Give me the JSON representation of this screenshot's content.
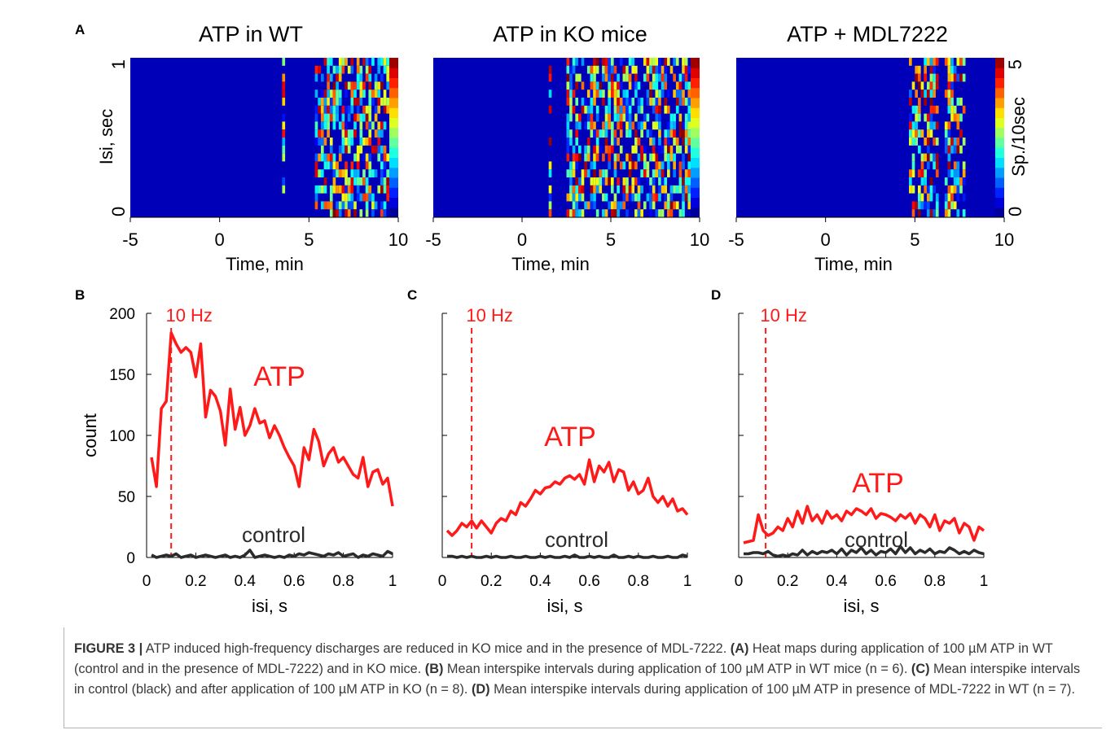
{
  "figure": {
    "panel_labels": [
      "A",
      "B",
      "C",
      "D"
    ],
    "heatmaps": [
      {
        "title": "ATP in WT",
        "xlabel": "Time, min",
        "ylabel": "Isi, sec",
        "xticks": [
          "-5",
          "0",
          "5",
          "10"
        ],
        "yticks": [
          "0",
          "1"
        ]
      },
      {
        "title": "ATP in KO mice",
        "xlabel": "Time, min",
        "xticks": [
          "-5",
          "0",
          "5",
          "10"
        ]
      },
      {
        "title": "ATP + MDL7222",
        "xlabel": "Time, min",
        "xticks": [
          "-5",
          "0",
          "5",
          "10"
        ]
      }
    ],
    "colorbar": {
      "label": "Sp./10sec",
      "ticks": [
        "0",
        "5"
      ]
    },
    "hz_label": "10 Hz",
    "atp_label": "ATP",
    "control_label": "control",
    "line_xlabel": "isi, s",
    "line_ylabel": "count",
    "line_xticks": [
      "0",
      "0.2",
      "0.4",
      "0.6",
      "0.8",
      "1"
    ],
    "line_yticks": [
      "0",
      "50",
      "100",
      "150",
      "200"
    ],
    "colors": {
      "atp": "#ff1a1a",
      "control": "#2b2b2b",
      "heat_background": "#0000b8"
    }
  },
  "chart_data": [
    {
      "type": "heatmap",
      "title": "ATP in WT",
      "xlabel": "Time, min",
      "ylabel": "Isi, sec",
      "xlim": [
        -5,
        10
      ],
      "ylim": [
        0,
        1
      ],
      "zlim": [
        0,
        5
      ],
      "colormap": "jet",
      "active_windows_min": [
        [
          3.5,
          3.7
        ],
        [
          5.3,
          10
        ]
      ]
    },
    {
      "type": "heatmap",
      "title": "ATP in KO mice",
      "xlabel": "Time, min",
      "xlim": [
        -5,
        10
      ],
      "ylim": [
        0,
        1
      ],
      "zlim": [
        0,
        5
      ],
      "colormap": "jet",
      "active_windows_min": [
        [
          1.5,
          1.7
        ],
        [
          2.5,
          9.5
        ]
      ]
    },
    {
      "type": "heatmap",
      "title": "ATP + MDL7222",
      "xlabel": "Time, min",
      "xlim": [
        -5,
        10
      ],
      "ylim": [
        0,
        1
      ],
      "zlim": [
        0,
        5
      ],
      "colormap": "jet",
      "active_windows_min": [
        [
          4.6,
          6.3
        ],
        [
          6.6,
          7.8
        ]
      ]
    },
    {
      "type": "line",
      "panel": "B",
      "xlabel": "isi, s",
      "ylabel": "count",
      "xlim": [
        0,
        1
      ],
      "ylim": [
        0,
        200
      ],
      "vline_x": 0.1,
      "vline_label": "10 Hz",
      "x": [
        0.02,
        0.04,
        0.06,
        0.08,
        0.1,
        0.12,
        0.14,
        0.16,
        0.18,
        0.2,
        0.22,
        0.24,
        0.26,
        0.28,
        0.3,
        0.32,
        0.34,
        0.36,
        0.38,
        0.4,
        0.42,
        0.44,
        0.46,
        0.48,
        0.5,
        0.52,
        0.54,
        0.56,
        0.58,
        0.6,
        0.62,
        0.64,
        0.66,
        0.68,
        0.7,
        0.72,
        0.74,
        0.76,
        0.78,
        0.8,
        0.82,
        0.84,
        0.86,
        0.88,
        0.9,
        0.92,
        0.94,
        0.96,
        0.98,
        1.0
      ],
      "series": [
        {
          "name": "ATP",
          "values": [
            82,
            58,
            122,
            128,
            184,
            175,
            168,
            172,
            168,
            148,
            175,
            115,
            137,
            132,
            120,
            92,
            138,
            105,
            123,
            100,
            108,
            122,
            110,
            112,
            98,
            108,
            100,
            90,
            82,
            75,
            58,
            90,
            80,
            105,
            95,
            75,
            85,
            90,
            78,
            82,
            75,
            68,
            65,
            82,
            58,
            70,
            72,
            60,
            65,
            42
          ]
        },
        {
          "name": "control",
          "values": [
            2,
            0,
            1,
            2,
            1,
            3,
            0,
            1,
            2,
            0,
            1,
            2,
            1,
            0,
            1,
            2,
            0,
            1,
            0,
            2,
            6,
            0,
            1,
            2,
            1,
            0,
            1,
            0,
            2,
            1,
            3,
            2,
            4,
            3,
            2,
            1,
            3,
            2,
            4,
            1,
            2,
            3,
            0,
            2,
            1,
            3,
            2,
            1,
            5,
            3
          ]
        }
      ]
    },
    {
      "type": "line",
      "panel": "C",
      "xlabel": "isi, s",
      "xlim": [
        0,
        1
      ],
      "ylim": [
        0,
        200
      ],
      "vline_x": 0.12,
      "vline_label": "10 Hz",
      "x": [
        0.02,
        0.04,
        0.06,
        0.08,
        0.1,
        0.12,
        0.14,
        0.16,
        0.18,
        0.2,
        0.22,
        0.24,
        0.26,
        0.28,
        0.3,
        0.32,
        0.34,
        0.36,
        0.38,
        0.4,
        0.42,
        0.44,
        0.46,
        0.48,
        0.5,
        0.52,
        0.54,
        0.56,
        0.58,
        0.6,
        0.62,
        0.64,
        0.66,
        0.68,
        0.7,
        0.72,
        0.74,
        0.76,
        0.78,
        0.8,
        0.82,
        0.84,
        0.86,
        0.88,
        0.9,
        0.92,
        0.94,
        0.96,
        0.98,
        1.0
      ],
      "series": [
        {
          "name": "ATP",
          "values": [
            22,
            18,
            22,
            28,
            25,
            30,
            24,
            30,
            25,
            20,
            28,
            32,
            30,
            38,
            35,
            45,
            42,
            48,
            55,
            52,
            57,
            58,
            62,
            60,
            65,
            67,
            64,
            68,
            60,
            80,
            62,
            75,
            70,
            78,
            62,
            72,
            70,
            55,
            62,
            52,
            55,
            65,
            50,
            45,
            50,
            42,
            48,
            38,
            40,
            35
          ]
        },
        {
          "name": "control",
          "values": [
            1,
            1,
            0,
            1,
            0,
            1,
            0,
            0,
            1,
            0,
            1,
            0,
            0,
            1,
            0,
            0,
            1,
            0,
            0,
            1,
            0,
            1,
            0,
            0,
            1,
            0,
            2,
            0,
            0,
            1,
            0,
            1,
            0,
            0,
            2,
            0,
            0,
            1,
            0,
            1,
            0,
            0,
            1,
            0,
            0,
            1,
            0,
            0,
            2,
            1
          ]
        }
      ]
    },
    {
      "type": "line",
      "panel": "D",
      "xlabel": "isi, s",
      "xlim": [
        0,
        1
      ],
      "ylim": [
        0,
        200
      ],
      "vline_x": 0.11,
      "vline_label": "10 Hz",
      "x": [
        0.02,
        0.04,
        0.06,
        0.08,
        0.1,
        0.12,
        0.14,
        0.16,
        0.18,
        0.2,
        0.22,
        0.24,
        0.26,
        0.28,
        0.3,
        0.32,
        0.34,
        0.36,
        0.38,
        0.4,
        0.42,
        0.44,
        0.46,
        0.48,
        0.5,
        0.52,
        0.54,
        0.56,
        0.58,
        0.6,
        0.62,
        0.64,
        0.66,
        0.68,
        0.7,
        0.72,
        0.74,
        0.76,
        0.78,
        0.8,
        0.82,
        0.84,
        0.86,
        0.88,
        0.9,
        0.92,
        0.94,
        0.96,
        0.98,
        1.0
      ],
      "series": [
        {
          "name": "ATP",
          "values": [
            12,
            13,
            14,
            35,
            22,
            18,
            20,
            25,
            22,
            32,
            25,
            38,
            28,
            42,
            30,
            35,
            28,
            38,
            32,
            35,
            30,
            38,
            35,
            40,
            38,
            35,
            40,
            32,
            36,
            35,
            33,
            30,
            35,
            32,
            36,
            28,
            35,
            32,
            25,
            35,
            22,
            30,
            28,
            32,
            20,
            28,
            25,
            14,
            25,
            22
          ]
        },
        {
          "name": "control",
          "values": [
            3,
            3,
            4,
            4,
            3,
            5,
            2,
            1,
            2,
            1,
            3,
            2,
            6,
            2,
            5,
            3,
            5,
            4,
            6,
            3,
            7,
            2,
            6,
            4,
            8,
            3,
            6,
            2,
            5,
            4,
            7,
            3,
            9,
            4,
            8,
            3,
            6,
            4,
            7,
            3,
            5,
            4,
            8,
            6,
            3,
            5,
            3,
            6,
            4,
            3
          ]
        }
      ]
    }
  ],
  "caption": {
    "fig_label": "FIGURE 3 |",
    "intro": " ATP induced high-frequency discharges are reduced in KO mice and in the presence of MDL-7222. ",
    "a_label": "(A)",
    "a_text": " Heat maps during application of 100 µM ATP in WT (control and in the presence of MDL-7222) and in KO mice. ",
    "b_label": "(B)",
    "b_text": " Mean interspike intervals during application of 100 µM ATP in WT mice (n = 6). ",
    "c_label": "(C)",
    "c_text": " Mean interspike intervals in control (black) and after application of 100 µM ATP in KO (n = 8). ",
    "d_label": "(D)",
    "d_text": " Mean interspike intervals during application of 100 µM ATP in presence of MDL-7222 in WT (n = 7)."
  }
}
